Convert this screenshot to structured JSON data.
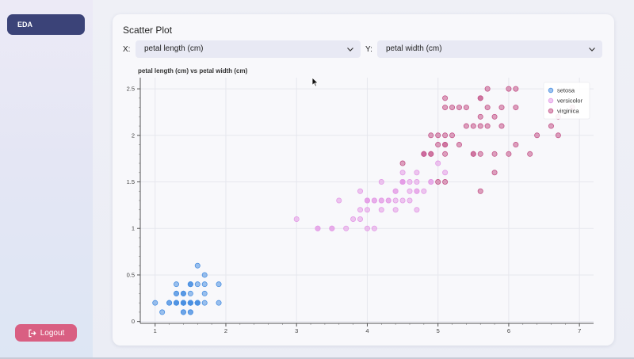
{
  "sidebar": {
    "nav_item": "EDA",
    "logout_label": "Logout"
  },
  "card": {
    "title": "Scatter Plot",
    "x_label": "X:",
    "y_label": "Y:",
    "x_select_value": "petal length (cm)",
    "y_select_value": "petal width (cm)"
  },
  "chart_data": {
    "type": "scatter",
    "title": "petal length (cm) vs petal width (cm)",
    "xlabel": "",
    "ylabel": "",
    "xlim": [
      0.79,
      7.2
    ],
    "ylim": [
      -0.02,
      2.62
    ],
    "xticks": [
      1,
      2,
      3,
      4,
      5,
      6,
      7
    ],
    "yticks": [
      0,
      0.5,
      1,
      1.5,
      2,
      2.5
    ],
    "grid": true,
    "legend_position": "top-right",
    "series": [
      {
        "name": "setosa",
        "color": "#4a90e2",
        "x": [
          1.4,
          1.4,
          1.3,
          1.5,
          1.4,
          1.7,
          1.4,
          1.5,
          1.4,
          1.5,
          1.5,
          1.6,
          1.4,
          1.1,
          1.2,
          1.5,
          1.3,
          1.4,
          1.7,
          1.5,
          1.7,
          1.5,
          1.0,
          1.7,
          1.9,
          1.6,
          1.6,
          1.5,
          1.4,
          1.6,
          1.6,
          1.5,
          1.5,
          1.4,
          1.5,
          1.2,
          1.3,
          1.4,
          1.3,
          1.5,
          1.3,
          1.3,
          1.3,
          1.6,
          1.9,
          1.4,
          1.6,
          1.4,
          1.5,
          1.4
        ],
        "y": [
          0.2,
          0.2,
          0.2,
          0.2,
          0.2,
          0.4,
          0.3,
          0.2,
          0.2,
          0.1,
          0.2,
          0.2,
          0.1,
          0.1,
          0.2,
          0.4,
          0.4,
          0.3,
          0.3,
          0.3,
          0.2,
          0.4,
          0.2,
          0.5,
          0.2,
          0.2,
          0.4,
          0.2,
          0.2,
          0.2,
          0.2,
          0.4,
          0.1,
          0.2,
          0.2,
          0.2,
          0.2,
          0.1,
          0.2,
          0.2,
          0.3,
          0.3,
          0.2,
          0.6,
          0.4,
          0.3,
          0.2,
          0.2,
          0.2,
          0.2
        ]
      },
      {
        "name": "versicolor",
        "color": "#e39be6",
        "x": [
          4.7,
          4.5,
          4.9,
          4.0,
          4.6,
          4.5,
          4.7,
          3.3,
          4.6,
          3.9,
          3.5,
          4.2,
          4.0,
          4.7,
          3.6,
          4.4,
          4.5,
          4.1,
          4.5,
          3.9,
          4.8,
          4.0,
          4.9,
          4.7,
          4.3,
          4.4,
          4.8,
          5.0,
          4.5,
          3.5,
          3.8,
          3.7,
          3.9,
          5.1,
          4.5,
          4.5,
          4.7,
          4.4,
          4.1,
          4.0,
          4.4,
          4.6,
          4.0,
          3.3,
          4.2,
          4.2,
          4.2,
          4.3,
          3.0,
          4.1
        ],
        "y": [
          1.4,
          1.5,
          1.5,
          1.3,
          1.5,
          1.3,
          1.6,
          1.0,
          1.3,
          1.4,
          1.0,
          1.5,
          1.0,
          1.4,
          1.3,
          1.4,
          1.5,
          1.0,
          1.5,
          1.1,
          1.8,
          1.3,
          1.5,
          1.2,
          1.3,
          1.4,
          1.4,
          1.7,
          1.5,
          1.0,
          1.1,
          1.0,
          1.2,
          1.6,
          1.5,
          1.6,
          1.5,
          1.3,
          1.3,
          1.3,
          1.2,
          1.4,
          1.2,
          1.0,
          1.3,
          1.2,
          1.3,
          1.3,
          1.1,
          1.3
        ]
      },
      {
        "name": "virginica",
        "color": "#c4568a",
        "x": [
          6.0,
          5.1,
          5.9,
          5.6,
          5.8,
          6.6,
          4.5,
          6.3,
          5.8,
          6.1,
          5.1,
          5.3,
          5.5,
          5.0,
          5.1,
          5.3,
          5.5,
          6.7,
          6.9,
          5.0,
          5.7,
          4.9,
          6.7,
          4.9,
          5.7,
          6.0,
          4.8,
          4.9,
          5.6,
          5.8,
          6.1,
          6.4,
          5.6,
          5.1,
          5.6,
          6.1,
          5.6,
          5.5,
          4.8,
          5.4,
          5.6,
          5.1,
          5.1,
          5.9,
          5.7,
          5.2,
          5.0,
          5.2,
          5.4,
          5.1
        ],
        "y": [
          2.5,
          1.9,
          2.1,
          1.8,
          2.2,
          2.1,
          1.7,
          1.8,
          1.8,
          2.5,
          2.0,
          1.9,
          2.1,
          2.0,
          2.4,
          2.3,
          1.8,
          2.2,
          2.3,
          1.5,
          2.3,
          2.0,
          2.0,
          1.8,
          2.1,
          1.8,
          1.8,
          1.8,
          2.1,
          1.6,
          1.9,
          2.0,
          2.2,
          1.5,
          1.4,
          2.3,
          2.4,
          1.8,
          1.8,
          2.1,
          2.4,
          2.3,
          1.9,
          2.3,
          2.5,
          2.3,
          1.9,
          2.0,
          2.3,
          1.8
        ]
      }
    ]
  }
}
